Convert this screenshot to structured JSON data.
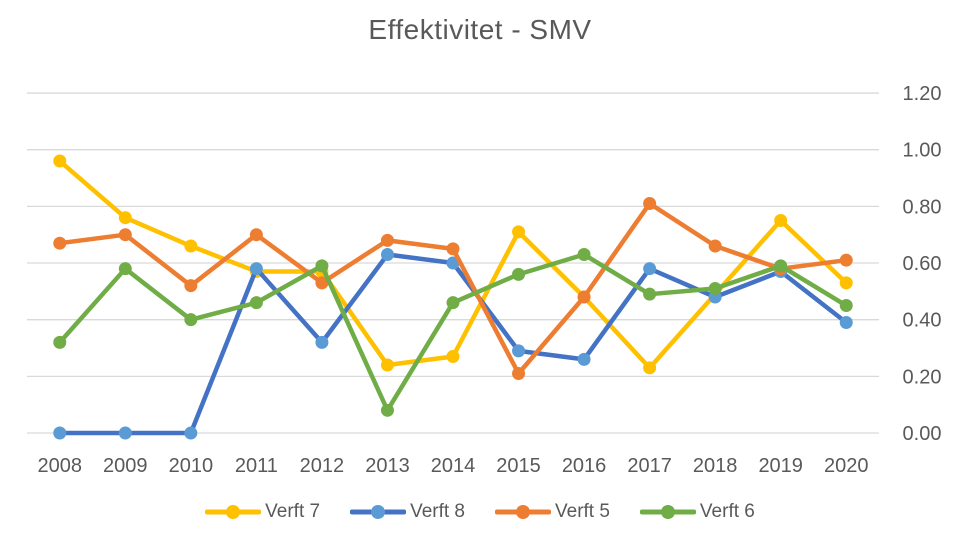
{
  "chart_data": {
    "type": "line",
    "title": "Effektivitet - SMV",
    "categories": [
      "2008",
      "2009",
      "2010",
      "2011",
      "2012",
      "2013",
      "2014",
      "2015",
      "2016",
      "2017",
      "2018",
      "2019",
      "2020"
    ],
    "series": [
      {
        "name": "Verft 7",
        "color": "#FFC000",
        "marker_color": "#FFC000",
        "values": [
          0.96,
          0.76,
          0.66,
          0.57,
          0.57,
          0.24,
          0.27,
          0.71,
          0.48,
          0.23,
          0.49,
          0.75,
          0.53
        ]
      },
      {
        "name": "Verft 8",
        "color": "#4472C4",
        "marker_color": "#5B9BD5",
        "values": [
          0.0,
          0.0,
          0.0,
          0.58,
          0.32,
          0.63,
          0.6,
          0.29,
          0.26,
          0.58,
          0.48,
          0.57,
          0.39
        ]
      },
      {
        "name": "Verft 5",
        "color": "#ED7D31",
        "marker_color": "#ED7D31",
        "values": [
          0.67,
          0.7,
          0.52,
          0.7,
          0.53,
          0.68,
          0.65,
          0.21,
          0.48,
          0.81,
          0.66,
          0.58,
          0.61
        ]
      },
      {
        "name": "Verft 6",
        "color": "#70AD47",
        "marker_color": "#70AD47",
        "values": [
          0.32,
          0.58,
          0.4,
          0.46,
          0.59,
          0.08,
          0.46,
          0.56,
          0.63,
          0.49,
          0.51,
          0.59,
          0.45
        ]
      }
    ],
    "x_axis": {
      "labels": [
        "2008",
        "2009",
        "2010",
        "2011",
        "2012",
        "2013",
        "2014",
        "2015",
        "2016",
        "2017",
        "2018",
        "2019",
        "2020"
      ]
    },
    "y_axis": {
      "side": "right",
      "min": 0.0,
      "max": 1.2,
      "ticks": [
        {
          "value": 0.0,
          "label": "0.00"
        },
        {
          "value": 0.2,
          "label": "0.20"
        },
        {
          "value": 0.4,
          "label": "0.40"
        },
        {
          "value": 0.6,
          "label": "0.60"
        },
        {
          "value": 0.8,
          "label": "0.80"
        },
        {
          "value": 1.0,
          "label": "1.00"
        },
        {
          "value": 1.2,
          "label": "1.20"
        }
      ]
    },
    "legend": {
      "position": "bottom"
    },
    "grid": true,
    "style": {
      "text_color": "#595959",
      "gridline_color": "#D9D9D9",
      "background": "#FFFFFF"
    }
  }
}
